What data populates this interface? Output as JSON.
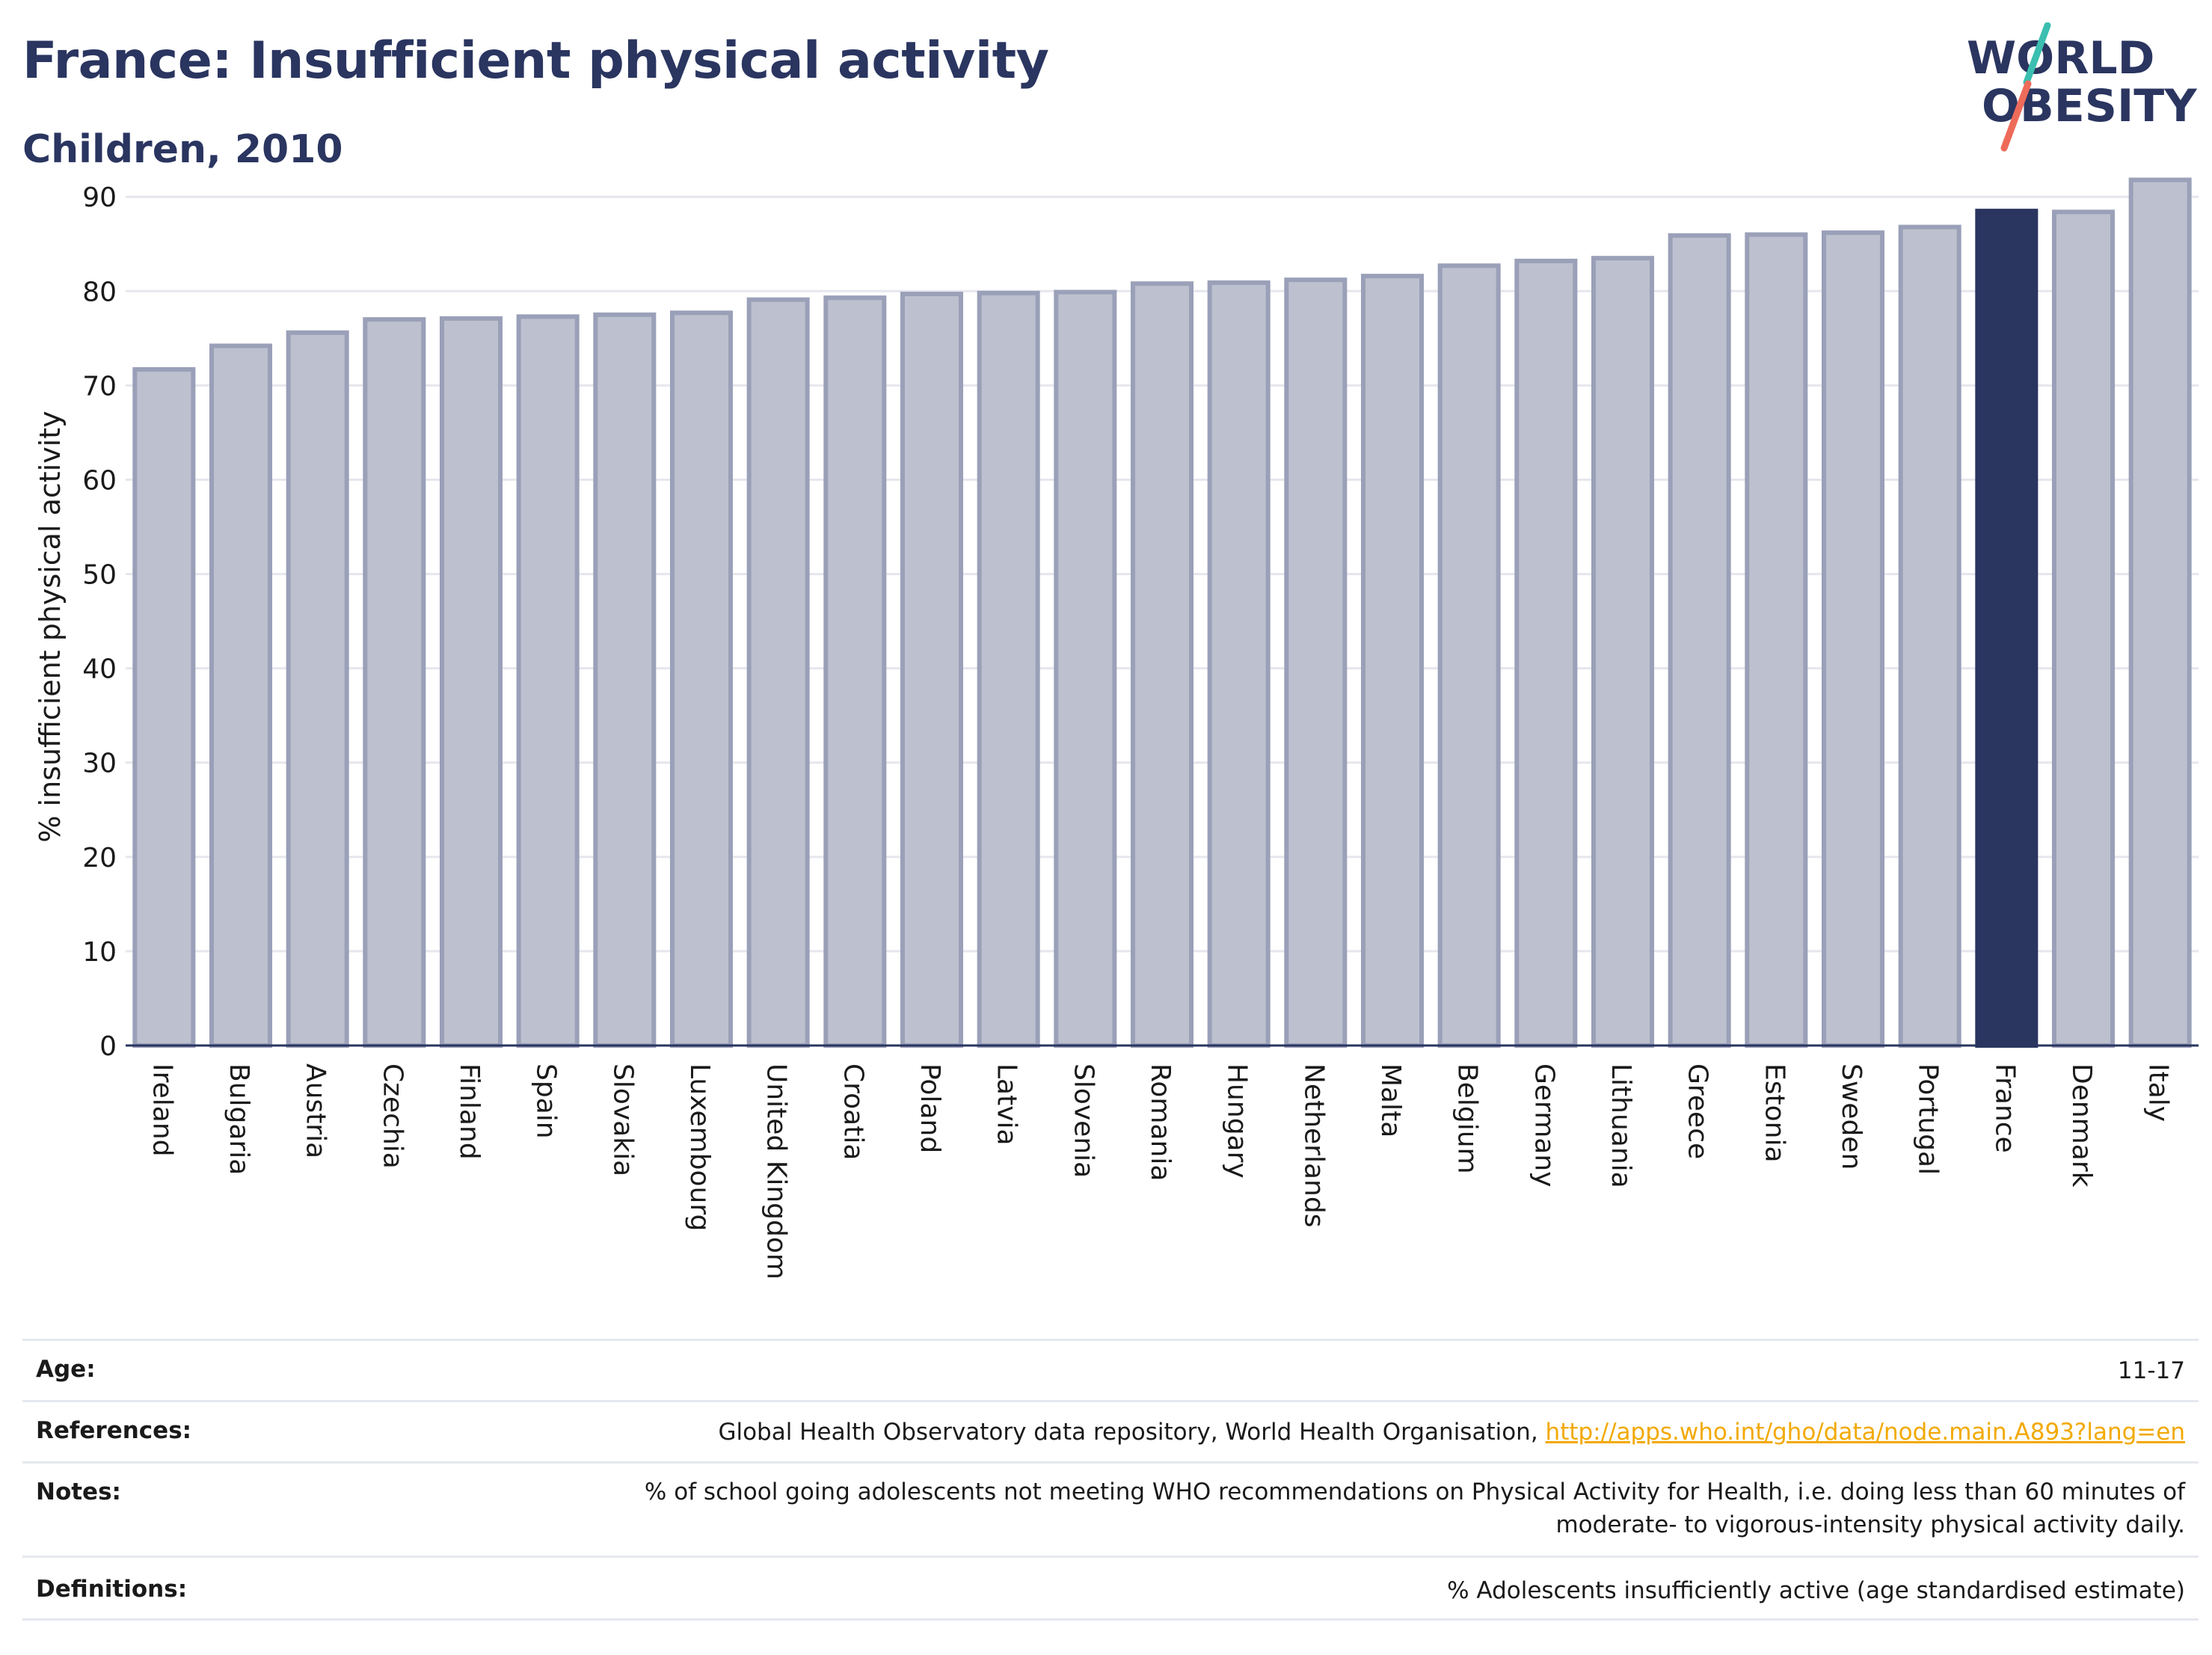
{
  "header": {
    "title": "France: Insufficient physical activity",
    "subtitle": "Children, 2010"
  },
  "logo": {
    "line1": "WORLD",
    "line2": "OBESITY",
    "colors": {
      "text": "#2a3560",
      "teal": "#3bbfb0",
      "coral": "#ee6b5a"
    }
  },
  "colors": {
    "bar_fill": "#bdc0ce",
    "bar_stroke": "#9aa0b8",
    "highlight": "#2a3560",
    "grid": "#e6e6ee",
    "axis": "#2a3560"
  },
  "chart_data": {
    "type": "bar",
    "title": "",
    "xlabel": "",
    "ylabel": "% insufficient physical activity",
    "ylim": [
      0,
      92
    ],
    "yticks": [
      0,
      10,
      20,
      30,
      40,
      50,
      60,
      70,
      80,
      90
    ],
    "grid": true,
    "highlight": "France",
    "categories": [
      "Ireland",
      "Bulgaria",
      "Austria",
      "Czechia",
      "Finland",
      "Spain",
      "Slovakia",
      "Luxembourg",
      "United Kingdom",
      "Croatia",
      "Poland",
      "Latvia",
      "Slovenia",
      "Romania",
      "Hungary",
      "Netherlands",
      "Malta",
      "Belgium",
      "Germany",
      "Lithuania",
      "Greece",
      "Estonia",
      "Sweden",
      "Portugal",
      "France",
      "Denmark",
      "Italy"
    ],
    "values": [
      71.7,
      74.2,
      75.6,
      77.0,
      77.1,
      77.3,
      77.5,
      77.7,
      79.1,
      79.3,
      79.7,
      79.8,
      79.9,
      80.8,
      80.9,
      81.2,
      81.6,
      82.7,
      83.2,
      83.5,
      85.9,
      86.0,
      86.2,
      86.8,
      88.5,
      88.4,
      91.8
    ]
  },
  "metadata": {
    "age": {
      "label": "Age:",
      "value": "11-17"
    },
    "references": {
      "label": "References:",
      "text": "Global Health Observatory data repository, World Health Organisation, ",
      "link": "http://apps.who.int/gho/data/node.main.A893?lang=en"
    },
    "notes": {
      "label": "Notes:",
      "line1": "% of school going adolescents not meeting WHO recommendations on Physical Activity for Health, i.e. doing less than 60 minutes of",
      "line2": "moderate- to vigorous-intensity physical activity daily."
    },
    "definitions": {
      "label": "Definitions:",
      "value": "% Adolescents insufficiently active (age standardised estimate)"
    }
  }
}
